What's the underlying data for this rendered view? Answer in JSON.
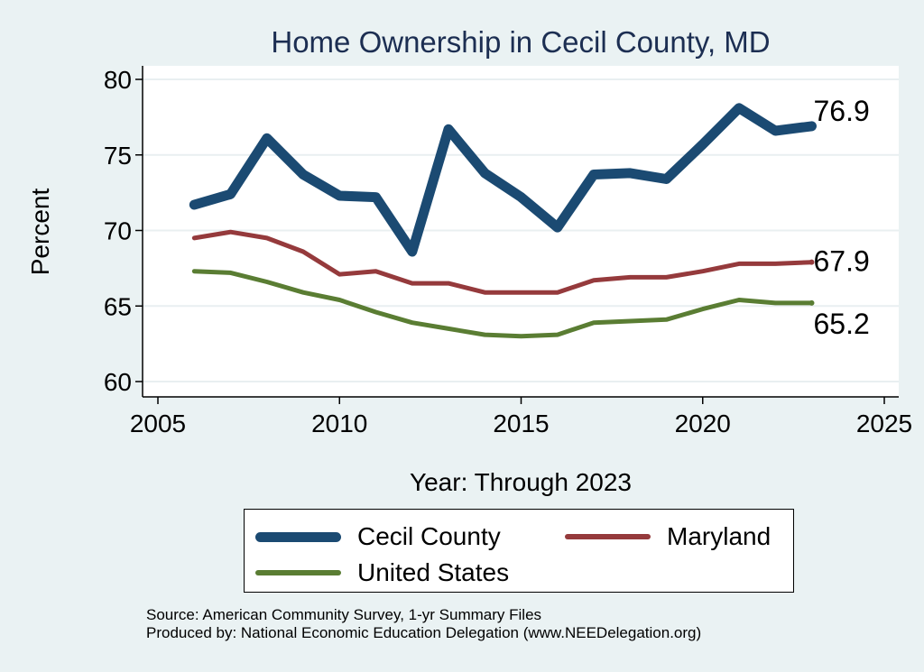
{
  "chart_data": {
    "type": "line",
    "title": "Home Ownership in Cecil County, MD",
    "xlabel": "Year: Through 2023",
    "ylabel": "Percent",
    "xlim": [
      2005,
      2025
    ],
    "ylim": [
      60,
      80
    ],
    "xticks": [
      2005,
      2010,
      2015,
      2020,
      2025
    ],
    "yticks": [
      60,
      65,
      70,
      75,
      80
    ],
    "grid": true,
    "x": [
      2006,
      2007,
      2008,
      2009,
      2010,
      2011,
      2012,
      2013,
      2014,
      2015,
      2016,
      2017,
      2018,
      2019,
      2020,
      2021,
      2022,
      2023
    ],
    "series": [
      {
        "name": "Cecil County",
        "color": "#1b4a72",
        "values": [
          71.7,
          72.4,
          76.1,
          73.7,
          72.3,
          72.2,
          68.6,
          76.7,
          73.8,
          72.2,
          70.2,
          73.7,
          73.8,
          73.4,
          75.7,
          78.1,
          76.6,
          76.9
        ],
        "end_label": "76.9"
      },
      {
        "name": "Maryland",
        "color": "#953a3c",
        "values": [
          69.5,
          69.9,
          69.5,
          68.6,
          67.1,
          67.3,
          66.5,
          66.5,
          65.9,
          65.9,
          65.9,
          66.7,
          66.9,
          66.9,
          67.3,
          67.8,
          67.8,
          67.9
        ],
        "end_label": "67.9"
      },
      {
        "name": "United States",
        "color": "#5a7d33",
        "values": [
          67.3,
          67.2,
          66.6,
          65.9,
          65.4,
          64.6,
          63.9,
          63.5,
          63.1,
          63.0,
          63.1,
          63.9,
          64.0,
          64.1,
          64.8,
          65.4,
          65.2,
          65.2
        ],
        "end_label": "65.2"
      }
    ],
    "legend": {
      "position": "bottom",
      "entries": [
        "Cecil County",
        "Maryland",
        "United States"
      ]
    },
    "footnotes": [
      "Source: American Community Survey, 1-yr Summary Files",
      "Produced by: National Economic Education Delegation (www.NEEDelegation.org)"
    ]
  }
}
